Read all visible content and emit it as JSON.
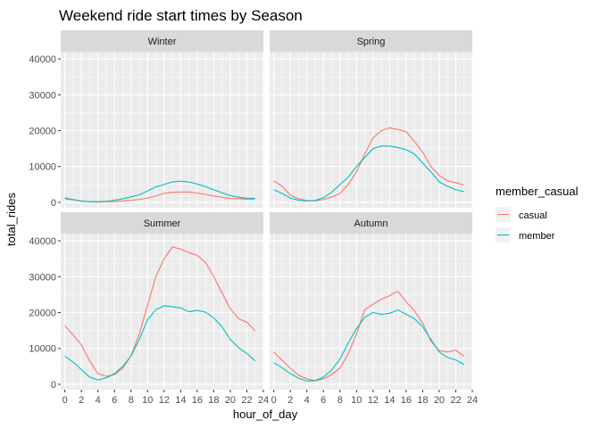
{
  "chart_data": {
    "type": "line",
    "title": "Weekend ride start times by Season",
    "xlabel": "hour_of_day",
    "ylabel": "total_rides",
    "x": [
      0,
      1,
      2,
      3,
      4,
      5,
      6,
      7,
      8,
      9,
      10,
      11,
      12,
      13,
      14,
      15,
      16,
      17,
      18,
      19,
      20,
      21,
      22,
      23
    ],
    "x_ticks": [
      0,
      2,
      4,
      6,
      8,
      10,
      12,
      14,
      16,
      18,
      20,
      22,
      24
    ],
    "xlim": [
      -0.5,
      24
    ],
    "ylim": [
      -1500,
      42000
    ],
    "y_ticks": [
      0,
      10000,
      20000,
      30000,
      40000
    ],
    "y_tick_labels": [
      "0",
      "10000",
      "20000",
      "30000",
      "40000"
    ],
    "grid": true,
    "legend": {
      "title": "member_casual",
      "position": "right",
      "entries": [
        {
          "label": "casual",
          "color": "#F8766D"
        },
        {
          "label": "member",
          "color": "#00BFC4"
        }
      ]
    },
    "panels": [
      {
        "label": "Winter",
        "series": [
          {
            "name": "casual",
            "color": "#F8766D",
            "values": [
              1000,
              700,
              300,
              200,
              100,
              200,
              200,
              400,
              600,
              800,
              1200,
              1800,
              2500,
              2800,
              2900,
              2900,
              2600,
              2200,
              1800,
              1400,
              1100,
              1000,
              900,
              900
            ]
          },
          {
            "name": "member",
            "color": "#00BFC4",
            "values": [
              1200,
              800,
              400,
              200,
              200,
              300,
              600,
              1000,
              1500,
              2100,
              3200,
              4300,
              5000,
              5700,
              5900,
              5700,
              5100,
              4400,
              3500,
              2700,
              1900,
              1400,
              1200,
              1100
            ]
          }
        ]
      },
      {
        "label": "Spring",
        "series": [
          {
            "name": "casual",
            "color": "#F8766D",
            "values": [
              6000,
              4500,
              2000,
              1000,
              500,
              400,
              800,
              1500,
              2500,
              5000,
              8500,
              13500,
              18000,
              20000,
              20800,
              20300,
              19700,
              17000,
              14000,
              10000,
              7500,
              6000,
              5500,
              4800
            ]
          },
          {
            "name": "member",
            "color": "#00BFC4",
            "values": [
              3500,
              2500,
              1200,
              600,
              400,
              500,
              1300,
              2800,
              5000,
              7000,
              10000,
              12500,
              15000,
              15700,
              15700,
              15300,
              14700,
              13500,
              11000,
              8500,
              5700,
              4500,
              3500,
              3000
            ]
          }
        ]
      },
      {
        "label": "Summer",
        "series": [
          {
            "name": "casual",
            "color": "#F8766D",
            "values": [
              16300,
              13800,
              11000,
              6500,
              3000,
              2200,
              2700,
              4500,
              8000,
              14000,
              22000,
              30000,
              35000,
              38300,
              37700,
              36700,
              35900,
              34000,
              30000,
              25500,
              21000,
              18300,
              17300,
              14900
            ]
          },
          {
            "name": "member",
            "color": "#00BFC4",
            "values": [
              7800,
              6200,
              4100,
              2000,
              1200,
              1800,
              3000,
              5000,
              7900,
              12500,
              18000,
              20800,
              21900,
              21600,
              21300,
              20200,
              20600,
              20100,
              18500,
              16000,
              12500,
              10200,
              8600,
              6500
            ]
          }
        ]
      },
      {
        "label": "Autumn",
        "series": [
          {
            "name": "casual",
            "color": "#F8766D",
            "values": [
              9000,
              6700,
              4500,
              2500,
              1500,
              1000,
              1500,
              2700,
              4500,
              8500,
              14000,
              20800,
              22300,
              23700,
              24700,
              25900,
              23000,
              20500,
              17000,
              12000,
              9400,
              9000,
              9500,
              7800
            ]
          },
          {
            "name": "member",
            "color": "#00BFC4",
            "values": [
              6000,
              4600,
              3000,
              1700,
              900,
              1000,
              2000,
              4000,
              7000,
              11500,
              15500,
              18700,
              20000,
              19500,
              19800,
              20700,
              19500,
              18300,
              16000,
              12500,
              9000,
              7500,
              6800,
              5500
            ]
          }
        ]
      }
    ]
  }
}
